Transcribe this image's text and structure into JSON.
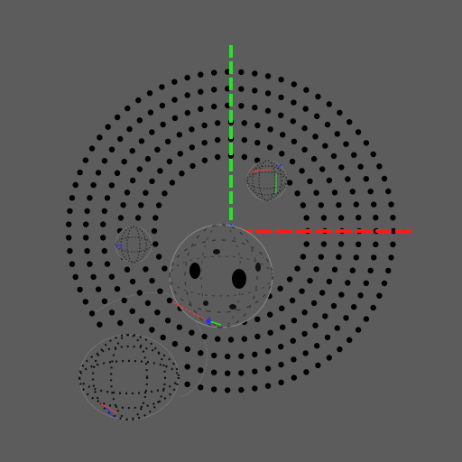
{
  "scene": {
    "type": "3d-viewport",
    "background_color": "#5c5c5c",
    "dot_color": "#000000",
    "axis_colors": {
      "x": "#ff1a1a",
      "y": "#22e622",
      "z": "#2233ff"
    },
    "ring_count": 6,
    "objects": [
      {
        "name": "dot-ring-disc",
        "kind": "concentric-dot-rings"
      },
      {
        "name": "center-sphere",
        "kind": "perforated-sphere"
      },
      {
        "name": "upper-right-sphere",
        "kind": "perforated-sphere"
      },
      {
        "name": "left-small-sphere",
        "kind": "perforated-sphere"
      },
      {
        "name": "lower-left-sphere",
        "kind": "perforated-sphere"
      }
    ]
  }
}
